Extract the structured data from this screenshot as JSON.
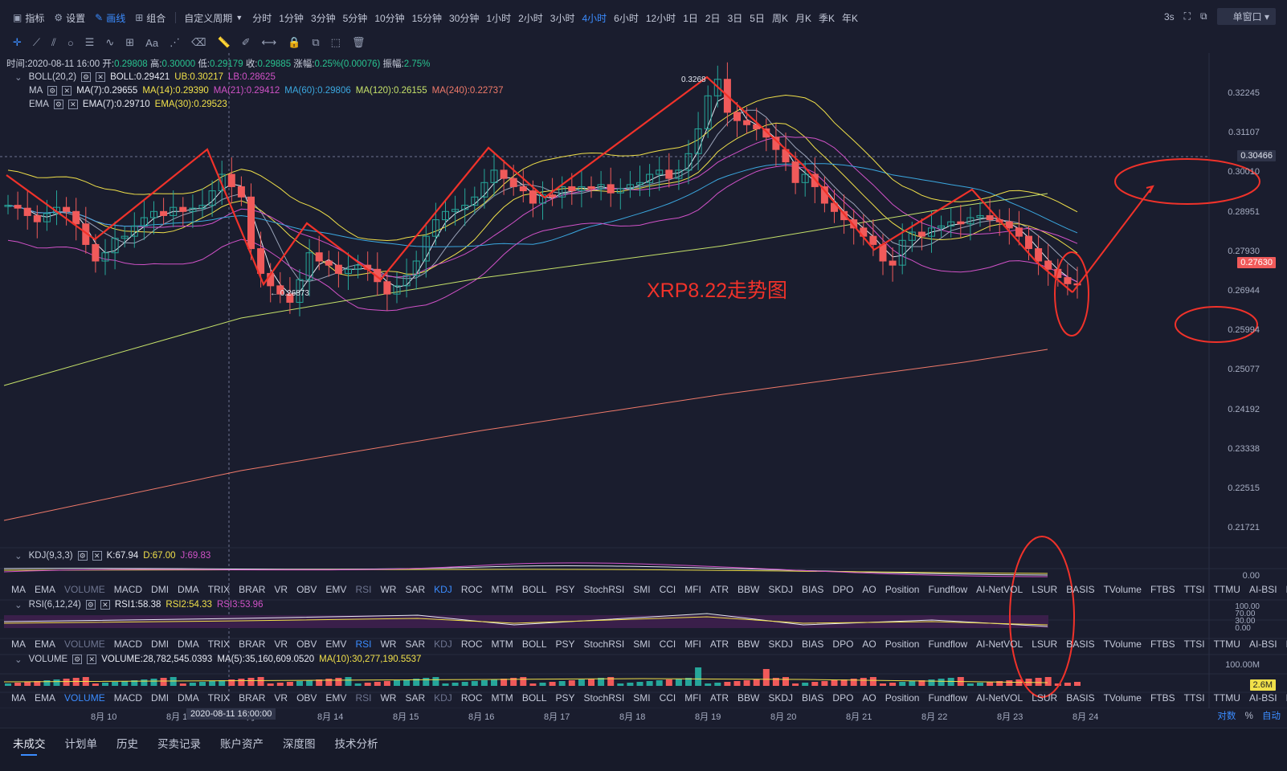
{
  "toolbar": {
    "items": [
      {
        "icon": "indicator-icon",
        "label": "指标"
      },
      {
        "icon": "gear-icon",
        "label": "设置"
      },
      {
        "icon": "pen-icon",
        "label": "画线"
      },
      {
        "icon": "combine-icon",
        "label": "组合"
      }
    ],
    "custom_period": "自定义周期",
    "periods": [
      "分时",
      "1分钟",
      "3分钟",
      "5分钟",
      "10分钟",
      "15分钟",
      "30分钟",
      "1小时",
      "2小时",
      "3小时",
      "4小时",
      "6小时",
      "12小时",
      "1日",
      "2日",
      "3日",
      "5日",
      "周K",
      "月K",
      "季K",
      "年K"
    ],
    "active_period": "4小时",
    "refresh": "3s",
    "window_mode": "单窗口"
  },
  "drawing_tools": [
    "crosshair-icon",
    "line-icon",
    "ray-icon",
    "circle-icon",
    "parallel-icon",
    "wave-icon",
    "grid-icon",
    "text-icon",
    "fib-icon",
    "eraser-icon",
    "ruler-icon",
    "brush-icon",
    "measure-icon",
    "lock-icon",
    "copy-icon",
    "screenshot-icon",
    "trash-icon"
  ],
  "drawing_text_label": "Aa",
  "ohlc": {
    "time_label": "时间:",
    "time": "2020-08-11 16:00",
    "open_label": "开:",
    "open": "0.29808",
    "high_label": "高:",
    "high": "0.30000",
    "low_label": "低:",
    "low": "0.29179",
    "close_label": "收:",
    "close": "0.29885",
    "change_label": "涨幅:",
    "change": "0.25%(0.00076)",
    "amp_label": "振幅:",
    "amp": "2.75%"
  },
  "boll": {
    "name": "BOLL(20,2)",
    "mid": "BOLL:0.29421",
    "ub": "UB:0.30217",
    "lb": "LB:0.28625"
  },
  "ma": {
    "name": "MA",
    "ma7": "MA(7):0.29655",
    "ma14": "MA(14):0.29390",
    "ma21": "MA(21):0.29412",
    "ma60": "MA(60):0.29806",
    "ma120": "MA(120):0.26155",
    "ma240": "MA(240):0.22737"
  },
  "ema": {
    "name": "EMA",
    "ema7": "EMA(7):0.29710",
    "ema30": "EMA(30):0.29523"
  },
  "price_axis": [
    "0.32245",
    "0.31107",
    "0.30010",
    "0.28951",
    "0.27930",
    "0.26944",
    "0.25994",
    "0.25077",
    "0.24192",
    "0.23338",
    "0.22515",
    "0.21721"
  ],
  "current_price": "0.27630",
  "crosshair_price": "0.30466",
  "high_marker": "0.3268",
  "low_marker": "← 0.26873",
  "annotation": "XRP8.22走势图",
  "kdj": {
    "name": "KDJ(9,3,3)",
    "k": "K:67.94",
    "d": "D:67.00",
    "j": "J:69.83",
    "axis": "0.00"
  },
  "rsi": {
    "name": "RSI(6,12,24)",
    "r1": "RSI1:58.38",
    "r2": "RSI2:54.33",
    "r3": "RSI3:53.96",
    "axis": [
      "100.00",
      "70.00",
      "30.00",
      "0.00"
    ]
  },
  "volume": {
    "name": "VOLUME",
    "v": "VOLUME:28,782,545.0393",
    "ma5": "MA(5):35,160,609.0520",
    "ma10": "MA(10):30,277,190.5537",
    "axis": "100.00M",
    "tag": "2.6M"
  },
  "indicator_tabs": [
    "MA",
    "EMA",
    "VOLUME",
    "MACD",
    "DMI",
    "DMA",
    "TRIX",
    "BRAR",
    "VR",
    "OBV",
    "EMV",
    "RSI",
    "WR",
    "SAR",
    "KDJ",
    "ROC",
    "MTM",
    "BOLL",
    "PSY",
    "StochRSI",
    "SMI",
    "CCI",
    "MFI",
    "ATR",
    "BBW",
    "SKDJ",
    "BIAS",
    "DPO",
    "AO",
    "Position",
    "Fundflow",
    "AI-NetVOL",
    "LSUR",
    "BASIS",
    "TVolume",
    "FTBS",
    "TTSI",
    "TTMU",
    "AI-BSI",
    "MLR"
  ],
  "dates": [
    "8月 10",
    "8月 1",
    "8月 13",
    "8月 14",
    "8月 15",
    "8月 16",
    "8月 17",
    "8月 18",
    "8月 19",
    "8月 20",
    "8月 21",
    "8月 22",
    "8月 23",
    "8月 24"
  ],
  "crosshair_date": "2020-08-11 16:00:00",
  "axis_options": {
    "log": "对数",
    "pct": "%",
    "auto": "自动"
  },
  "bottom_tabs": [
    "未成交",
    "计划单",
    "历史",
    "买卖记录",
    "账户资产",
    "深度图",
    "技术分析"
  ],
  "colors": {
    "up": "#26a69a",
    "down": "#f05a5a",
    "accent": "#3b8cff",
    "annotation": "#f0322a",
    "yellow": "#f0e04a",
    "magenta": "#d152c8"
  }
}
